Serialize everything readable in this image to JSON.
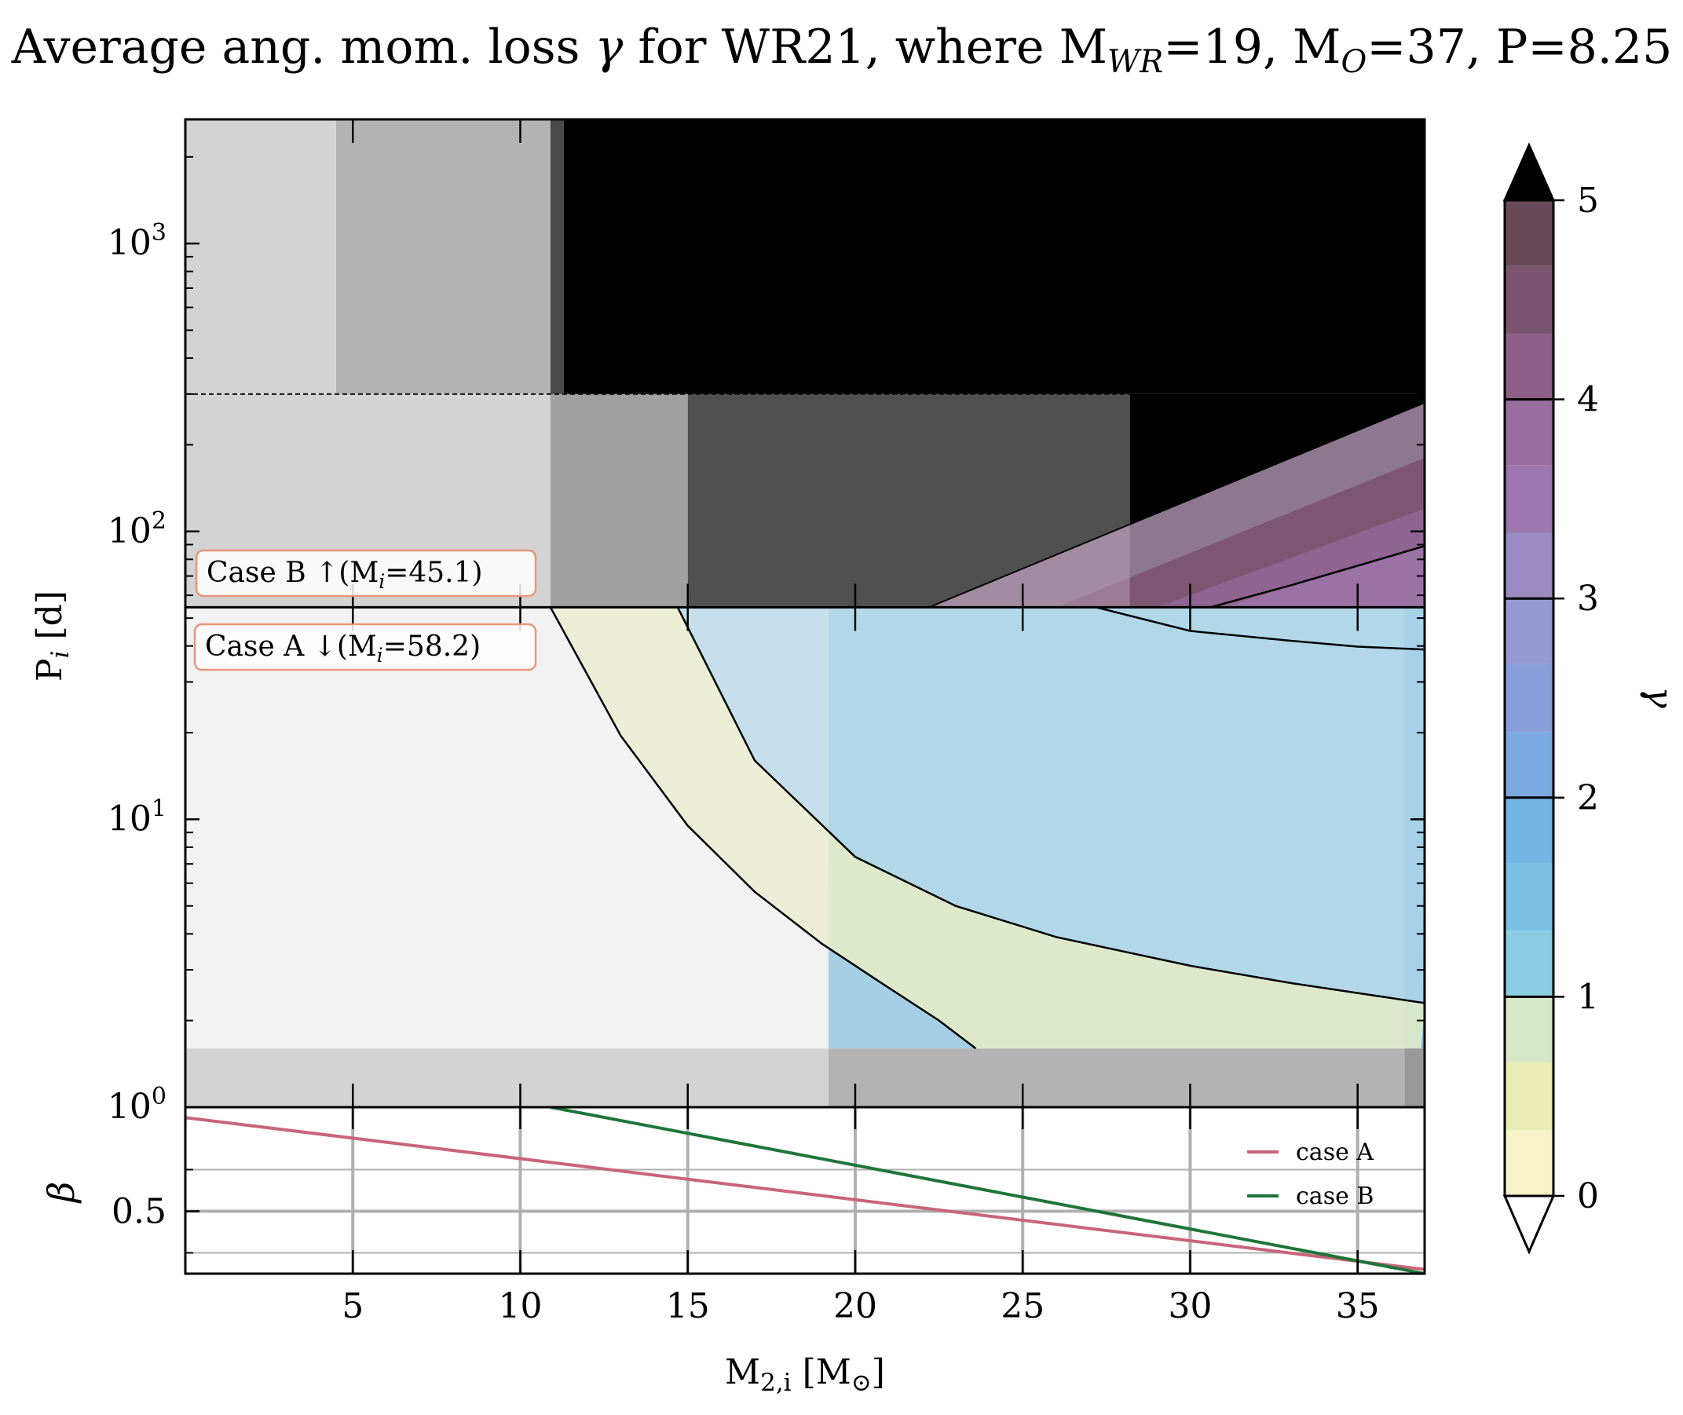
{
  "title": "Average ang. mom. loss γ for WR21, where M_WR=19, M_O=37, P=8.25",
  "title_parts": {
    "prefix": "Average ang. mom. loss ",
    "gamma": "γ",
    "mid": " for WR21, where M",
    "wr_sub": "WR",
    "mwr_val": "=19, M",
    "o_sub": "O",
    "tail": "=37, P=8.25"
  },
  "main_panel": {
    "ylabel": {
      "main": "P",
      "sub": "i",
      "unit": " [d]"
    },
    "yscale": "log",
    "ylim": [
      1,
      2700
    ],
    "xlim": [
      0,
      37
    ],
    "yticks": [
      {
        "value": 1,
        "base": "10",
        "exp": "0"
      },
      {
        "value": 10,
        "base": "10",
        "exp": "1"
      },
      {
        "value": 100,
        "base": "10",
        "exp": "2"
      },
      {
        "value": 1000,
        "base": "10",
        "exp": "3"
      }
    ],
    "case_boundary_period": 54.5,
    "case_b_dashed_period": 300,
    "annotations": [
      {
        "id": "case-b",
        "text_pre": "Case B ↑(M",
        "sub": "i",
        "text_post": "=45.1)",
        "edge": "#e8967a"
      },
      {
        "id": "case-a",
        "text_pre": "Case A ↓(M",
        "sub": "i",
        "text_post": "=58.2)",
        "edge": "#e8967a"
      }
    ]
  },
  "beta_panel": {
    "ylabel": "β",
    "ylim": [
      0.2,
      1.0
    ],
    "yticks": [
      {
        "value": 0.5,
        "label": "0.5"
      }
    ],
    "grid": true,
    "legend_position": "right",
    "xlabel": {
      "main": "M",
      "sub": "2,i",
      "unit_open": " [M",
      "unit_sub": "⊙",
      "unit_close": "]"
    },
    "xticks": [
      {
        "value": 5,
        "label": "5"
      },
      {
        "value": 10,
        "label": "10"
      },
      {
        "value": 15,
        "label": "15"
      },
      {
        "value": 20,
        "label": "20"
      },
      {
        "value": 25,
        "label": "25"
      },
      {
        "value": 30,
        "label": "30"
      },
      {
        "value": 35,
        "label": "35"
      }
    ]
  },
  "colorbar": {
    "label": "γ",
    "range": [
      0,
      5
    ],
    "extend": "both",
    "ticks": [
      {
        "value": 0,
        "label": "0"
      },
      {
        "value": 1,
        "label": "1"
      },
      {
        "value": 2,
        "label": "2"
      },
      {
        "value": 3,
        "label": "3"
      },
      {
        "value": 4,
        "label": "4"
      },
      {
        "value": 5,
        "label": "5"
      }
    ],
    "levels": [
      {
        "from": 0.0,
        "to": 0.33,
        "color": "#f6f3c8"
      },
      {
        "from": 0.33,
        "to": 0.67,
        "color": "#e9ecb6"
      },
      {
        "from": 0.67,
        "to": 1.0,
        "color": "#d7e8c7"
      },
      {
        "from": 1.0,
        "to": 1.33,
        "color": "#8dcde3"
      },
      {
        "from": 1.33,
        "to": 1.67,
        "color": "#7cc0e5"
      },
      {
        "from": 1.67,
        "to": 2.0,
        "color": "#73b6e4"
      },
      {
        "from": 2.0,
        "to": 2.33,
        "color": "#7aa9e0"
      },
      {
        "from": 2.33,
        "to": 2.67,
        "color": "#899ed9"
      },
      {
        "from": 2.67,
        "to": 3.0,
        "color": "#9598d2"
      },
      {
        "from": 3.0,
        "to": 3.33,
        "color": "#9c8ac2"
      },
      {
        "from": 3.33,
        "to": 3.67,
        "color": "#9d78b0"
      },
      {
        "from": 3.67,
        "to": 4.0,
        "color": "#9a6c9f"
      },
      {
        "from": 4.0,
        "to": 4.33,
        "color": "#8e5f88"
      },
      {
        "from": 4.33,
        "to": 4.67,
        "color": "#7b5570"
      },
      {
        "from": 4.67,
        "to": 5.0,
        "color": "#694a58"
      }
    ],
    "over_color": "#000000",
    "under_color": "#ffffff"
  },
  "chart_data": {
    "type": "line",
    "title": "Average ang. mom. loss γ for WR21, where M_WR=19, M_O=37, P=8.25",
    "xlabel": "M_2,i [M_⊙]",
    "xlim": [
      0,
      37
    ],
    "panels": [
      {
        "name": "gamma-map",
        "ylabel": "P_i [d]",
        "yscale": "log",
        "ylim": [
          1,
          2700
        ],
        "contour_lines": [
          {
            "level": 0,
            "x": [
              10.9,
              13,
              15,
              17,
              19,
              21,
              22.5,
              23.6
            ],
            "y": [
              54.5,
              19.5,
              9.5,
              5.6,
              3.7,
              2.6,
              2.0,
              1.6
            ]
          },
          {
            "level": 1,
            "x": [
              14.7,
              17,
              20,
              23,
              26,
              30,
              33,
              37
            ],
            "y": [
              54.5,
              16,
              7.4,
              5.0,
              3.9,
              3.1,
              2.7,
              2.3
            ]
          },
          {
            "level": 2,
            "x": [
              27.2,
              30,
              33,
              35,
              37
            ],
            "y": [
              54.5,
              45.1,
              41.7,
              39.8,
              38.9
            ]
          },
          {
            "level": 3,
            "x": [
              30.6,
              33,
              35,
              37
            ],
            "y": [
              54.5,
              65,
              76,
              89
            ]
          }
        ]
      },
      {
        "name": "beta",
        "ylabel": "β",
        "ylim": [
          0.2,
          1.0
        ],
        "series": [
          {
            "name": "case A",
            "color": "#c9647a",
            "x": [
              0,
              37
            ],
            "y": [
              0.95,
              0.22
            ]
          },
          {
            "name": "case B",
            "color": "#1e7538",
            "x": [
              10.9,
              37
            ],
            "y": [
              1.0,
              0.2
            ]
          }
        ]
      }
    ]
  }
}
